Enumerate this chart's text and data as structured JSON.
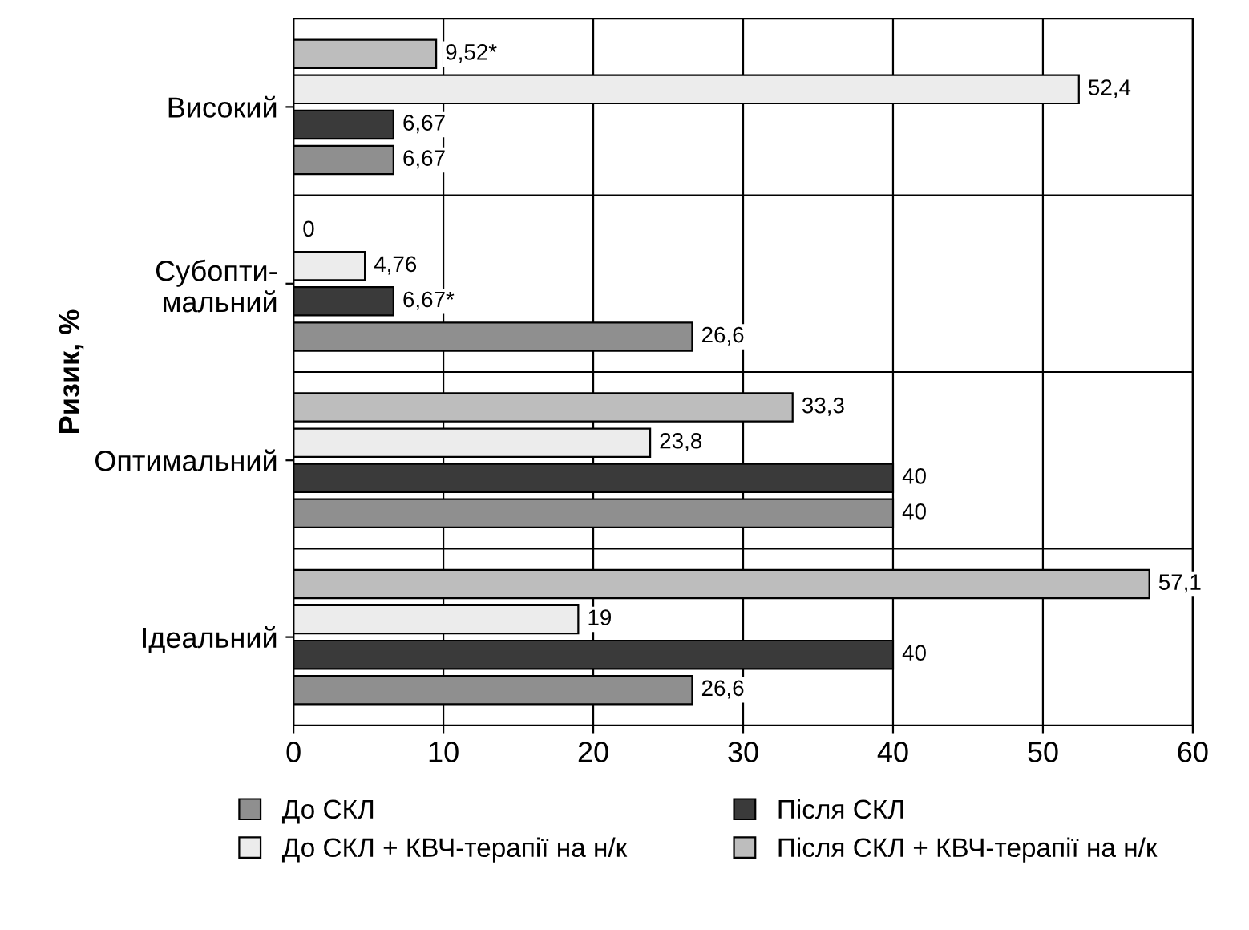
{
  "chart_data": {
    "type": "bar",
    "orientation": "horizontal",
    "ylabel": "Ризик, %",
    "categories": [
      "Високий",
      "Субопти-\nмальний",
      "Оптимальний",
      "Ідеальний"
    ],
    "series": [
      {
        "name": "До СКЛ",
        "color": "#8f8f8f",
        "values": [
          6.67,
          26.6,
          40,
          26.6
        ],
        "value_labels": [
          "6,67",
          "26,6",
          "40",
          "26,6"
        ]
      },
      {
        "name": "Після СКЛ",
        "color": "#3a3a3a",
        "values": [
          6.67,
          6.67,
          40,
          40
        ],
        "value_labels": [
          "6,67",
          "6,67*",
          "40",
          "40"
        ]
      },
      {
        "name": "До СКЛ + КВЧ-терапії на н/к",
        "color": "#ececec",
        "values": [
          52.4,
          4.76,
          23.8,
          19
        ],
        "value_labels": [
          "52,4",
          "4,76",
          "23,8",
          "19"
        ]
      },
      {
        "name": "Після СКЛ + КВЧ-терапії на н/к",
        "color": "#bdbdbd",
        "values": [
          9.52,
          0,
          33.3,
          57.1
        ],
        "value_labels": [
          "9,52*",
          "0",
          "33,3",
          "57,1"
        ]
      }
    ],
    "xlim": [
      0,
      60
    ],
    "xticks": [
      0,
      10,
      20,
      30,
      40,
      50,
      60
    ],
    "grid": "x",
    "legend": "bottom"
  }
}
